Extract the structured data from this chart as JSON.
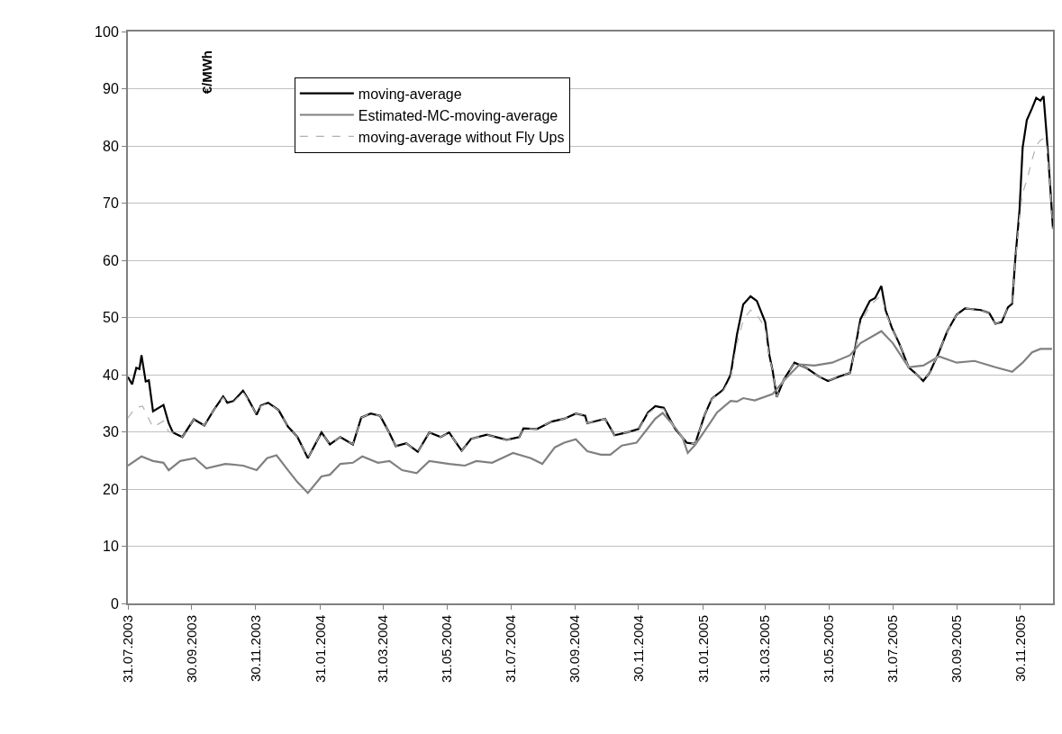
{
  "chart_data": {
    "type": "line",
    "ylabel": "€/MWh",
    "xlim": [
      "2003-07-31",
      "2005-12-31"
    ],
    "ylim": [
      0,
      100
    ],
    "xticks": [
      {
        "value": "2003-07-31",
        "label": "31.07.2003"
      },
      {
        "value": "2003-09-30",
        "label": "30.09.2003"
      },
      {
        "value": "2003-11-30",
        "label": "30.11.2003"
      },
      {
        "value": "2004-01-31",
        "label": "31.01.2004"
      },
      {
        "value": "2004-03-31",
        "label": "31.03.2004"
      },
      {
        "value": "2004-05-31",
        "label": "31.05.2004"
      },
      {
        "value": "2004-07-31",
        "label": "31.07.2004"
      },
      {
        "value": "2004-09-30",
        "label": "30.09.2004"
      },
      {
        "value": "2004-11-30",
        "label": "30.11.2004"
      },
      {
        "value": "2005-01-31",
        "label": "31.01.2005"
      },
      {
        "value": "2005-03-31",
        "label": "31.03.2005"
      },
      {
        "value": "2005-05-31",
        "label": "31.05.2005"
      },
      {
        "value": "2005-07-31",
        "label": "31.07.2005"
      },
      {
        "value": "2005-09-30",
        "label": "30.09.2005"
      },
      {
        "value": "2005-11-30",
        "label": "30.11.2005"
      }
    ],
    "yticks": [
      0,
      10,
      20,
      30,
      40,
      50,
      60,
      70,
      80,
      90,
      100
    ],
    "grid": "y",
    "legend": "top",
    "marker": "none",
    "series": [
      {
        "name": "moving-average",
        "color": "#000000",
        "line_style": "solid",
        "x": [
          "2003-07-31",
          "2003-08-04",
          "2003-08-08",
          "2003-08-11",
          "2003-08-13",
          "2003-08-17",
          "2003-08-20",
          "2003-08-24",
          "2003-09-03",
          "2003-09-08",
          "2003-09-12",
          "2003-09-21",
          "2003-10-02",
          "2003-10-12",
          "2003-10-21",
          "2003-10-30",
          "2003-11-03",
          "2003-11-09",
          "2003-11-18",
          "2003-11-24",
          "2003-12-01",
          "2003-12-05",
          "2003-12-12",
          "2003-12-22",
          "2003-12-31",
          "2004-01-09",
          "2004-01-19",
          "2004-02-01",
          "2004-02-09",
          "2004-02-19",
          "2004-03-02",
          "2004-03-10",
          "2004-03-19",
          "2004-03-28",
          "2004-04-05",
          "2004-04-12",
          "2004-04-22",
          "2004-05-03",
          "2004-05-14",
          "2004-05-25",
          "2004-06-02",
          "2004-06-06",
          "2004-06-14",
          "2004-06-23",
          "2004-07-08",
          "2004-07-27",
          "2004-08-08",
          "2004-08-12",
          "2004-08-25",
          "2004-09-08",
          "2004-09-20",
          "2004-10-01",
          "2004-10-10",
          "2004-10-12",
          "2004-10-29",
          "2004-11-07",
          "2004-11-19",
          "2004-11-30",
          "2004-12-09",
          "2004-12-16",
          "2004-12-24",
          "2005-01-04",
          "2005-01-15",
          "2005-01-23",
          "2005-02-01",
          "2005-02-08",
          "2005-02-19",
          "2005-02-26",
          "2005-03-04",
          "2005-03-10",
          "2005-03-17",
          "2005-03-23",
          "2005-03-31",
          "2005-04-04",
          "2005-04-07",
          "2005-04-11",
          "2005-04-18",
          "2005-04-28",
          "2005-05-10",
          "2005-05-21",
          "2005-05-30",
          "2005-06-10",
          "2005-06-20",
          "2005-06-25",
          "2005-06-30",
          "2005-07-09",
          "2005-07-14",
          "2005-07-20",
          "2005-07-24",
          "2005-07-30",
          "2005-08-06",
          "2005-08-15",
          "2005-08-23",
          "2005-08-29",
          "2005-09-04",
          "2005-09-13",
          "2005-09-21",
          "2005-09-30",
          "2005-10-08",
          "2005-10-23",
          "2005-10-31",
          "2005-11-06",
          "2005-11-12",
          "2005-11-18",
          "2005-11-22",
          "2005-11-25",
          "2005-11-29",
          "2005-12-02",
          "2005-12-06",
          "2005-12-11",
          "2005-12-15",
          "2005-12-19",
          "2005-12-22",
          "2005-12-25",
          "2005-12-28",
          "2005-12-31"
        ],
        "values": [
          39.6,
          38.3,
          41.2,
          41,
          43.4,
          38.8,
          39,
          33.6,
          34.7,
          31.5,
          29.9,
          29.1,
          32.2,
          31.1,
          33.8,
          36.2,
          35.1,
          35.4,
          37.2,
          35.4,
          33,
          34.6,
          35.1,
          33.8,
          30.9,
          29.1,
          25.4,
          29.9,
          27.8,
          29.1,
          27.8,
          32.5,
          33.2,
          32.8,
          30.1,
          27.5,
          28,
          26.5,
          29.9,
          29.1,
          29.9,
          28.8,
          26.7,
          28.8,
          29.5,
          28.6,
          29.1,
          30.6,
          30.5,
          31.8,
          32.3,
          33.2,
          32.8,
          31.5,
          32.3,
          29.4,
          29.9,
          30.5,
          33.4,
          34.5,
          34.2,
          30.5,
          28.1,
          27.9,
          32.9,
          35.8,
          37.4,
          40,
          47,
          52.3,
          53.7,
          52.9,
          49.2,
          43.4,
          40.8,
          36.1,
          39.2,
          42.1,
          41.1,
          39.7,
          38.9,
          39.7,
          40.3,
          44.7,
          49.7,
          52.9,
          53.4,
          55.5,
          51.3,
          48.2,
          45.5,
          41.3,
          40,
          38.9,
          40.3,
          43.9,
          47.6,
          50.5,
          51.6,
          51.3,
          50.8,
          48.9,
          49.2,
          51.8,
          52.4,
          60.3,
          68.7,
          79.7,
          84.5,
          86.6,
          88.4,
          87.9,
          88.7,
          81.8,
          73.9,
          65.5
        ]
      },
      {
        "name": "Estimated-MC-moving-average",
        "color": "#808080",
        "line_style": "solid",
        "x": [
          "2003-07-31",
          "2003-08-13",
          "2003-08-24",
          "2003-09-03",
          "2003-09-08",
          "2003-09-19",
          "2003-10-03",
          "2003-10-14",
          "2003-11-01",
          "2003-11-18",
          "2003-12-01",
          "2003-12-11",
          "2003-12-20",
          "2003-12-31",
          "2004-01-09",
          "2004-01-19",
          "2004-02-01",
          "2004-02-09",
          "2004-02-19",
          "2004-03-02",
          "2004-03-11",
          "2004-03-26",
          "2004-04-06",
          "2004-04-18",
          "2004-05-02",
          "2004-05-14",
          "2004-06-02",
          "2004-06-17",
          "2004-06-28",
          "2004-07-13",
          "2004-08-02",
          "2004-08-19",
          "2004-08-30",
          "2004-09-11",
          "2004-09-20",
          "2004-10-01",
          "2004-10-12",
          "2004-10-25",
          "2004-11-03",
          "2004-11-14",
          "2004-11-28",
          "2004-12-07",
          "2004-12-16",
          "2004-12-23",
          "2005-01-02",
          "2005-01-11",
          "2005-01-16",
          "2005-01-23",
          "2005-02-05",
          "2005-02-13",
          "2005-02-26",
          "2005-03-04",
          "2005-03-10",
          "2005-03-21",
          "2005-04-07",
          "2005-04-19",
          "2005-05-03",
          "2005-05-17",
          "2005-06-03",
          "2005-06-20",
          "2005-06-30",
          "2005-07-20",
          "2005-07-31",
          "2005-08-15",
          "2005-08-29",
          "2005-09-13",
          "2005-09-30",
          "2005-10-17",
          "2005-11-06",
          "2005-11-22",
          "2005-12-02",
          "2005-12-11",
          "2005-12-19",
          "2005-12-30"
        ],
        "values": [
          24.1,
          25.7,
          24.9,
          24.6,
          23.3,
          24.9,
          25.4,
          23.6,
          24.4,
          24.1,
          23.3,
          25.4,
          25.9,
          23.3,
          21.2,
          19.3,
          22.2,
          22.5,
          24.4,
          24.6,
          25.7,
          24.6,
          24.9,
          23.3,
          22.8,
          24.9,
          24.4,
          24.1,
          24.9,
          24.6,
          26.3,
          25.4,
          24.4,
          27.3,
          28.1,
          28.7,
          26.6,
          26,
          26,
          27.6,
          28.1,
          30.2,
          32.3,
          33.3,
          31.2,
          29,
          26.3,
          27.7,
          31.2,
          33.4,
          35.4,
          35.3,
          35.9,
          35.5,
          36.6,
          39.2,
          41.8,
          41.6,
          42.1,
          43.4,
          45.5,
          47.6,
          45.5,
          41.3,
          41.6,
          43.2,
          42.1,
          42.4,
          41.3,
          40.5,
          42.1,
          43.9,
          44.5,
          44.5
        ]
      },
      {
        "name": "moving-average without Fly Ups",
        "color": "#b0b0b0",
        "line_style": "dashed",
        "x": [
          "2003-07-31",
          "2003-08-07",
          "2003-08-14",
          "2003-08-24",
          "2003-09-03",
          "2003-09-08",
          "2003-09-12",
          "2003-09-21",
          "2003-10-02",
          "2003-10-12",
          "2003-10-21",
          "2003-10-30",
          "2003-11-03",
          "2003-11-09",
          "2003-11-18",
          "2003-11-24",
          "2003-12-01",
          "2003-12-05",
          "2003-12-12",
          "2003-12-22",
          "2003-12-31",
          "2004-01-09",
          "2004-01-19",
          "2004-02-01",
          "2004-02-09",
          "2004-02-19",
          "2004-03-02",
          "2004-03-10",
          "2004-03-19",
          "2004-03-28",
          "2004-04-05",
          "2004-04-12",
          "2004-04-22",
          "2004-05-03",
          "2004-05-14",
          "2004-05-25",
          "2004-06-02",
          "2004-06-06",
          "2004-06-14",
          "2004-06-23",
          "2004-07-08",
          "2004-07-27",
          "2004-08-08",
          "2004-08-12",
          "2004-08-25",
          "2004-09-08",
          "2004-09-20",
          "2004-10-01",
          "2004-10-10",
          "2004-10-12",
          "2004-10-29",
          "2004-11-07",
          "2004-11-19",
          "2004-11-30",
          "2004-12-09",
          "2004-12-16",
          "2004-12-24",
          "2005-01-04",
          "2005-01-15",
          "2005-01-23",
          "2005-02-01",
          "2005-02-08",
          "2005-02-19",
          "2005-02-26",
          "2005-03-04",
          "2005-03-10",
          "2005-03-17",
          "2005-03-23",
          "2005-03-31",
          "2005-04-04",
          "2005-04-07",
          "2005-04-11",
          "2005-04-18",
          "2005-04-28",
          "2005-05-10",
          "2005-05-21",
          "2005-05-30",
          "2005-06-10",
          "2005-06-20",
          "2005-06-25",
          "2005-06-30",
          "2005-07-09",
          "2005-07-14",
          "2005-07-20",
          "2005-07-24",
          "2005-07-30",
          "2005-08-06",
          "2005-08-15",
          "2005-08-23",
          "2005-08-29",
          "2005-09-04",
          "2005-09-13",
          "2005-09-21",
          "2005-09-30",
          "2005-10-08",
          "2005-10-23",
          "2005-10-31",
          "2005-11-06",
          "2005-11-12",
          "2005-11-18",
          "2005-11-22",
          "2005-11-25",
          "2005-11-29",
          "2005-12-02",
          "2005-12-06",
          "2005-12-11",
          "2005-12-15",
          "2005-12-19",
          "2005-12-22",
          "2005-12-25",
          "2005-12-28",
          "2005-12-31"
        ],
        "values": [
          32.4,
          34.2,
          34.5,
          30.8,
          31.9,
          30,
          29.9,
          29.1,
          32.2,
          31.1,
          33.8,
          36,
          35,
          35.2,
          37,
          35.3,
          33,
          34.5,
          35,
          33.8,
          30.9,
          29.1,
          25.4,
          29.9,
          27.8,
          29.1,
          27.8,
          32.5,
          33.2,
          32.8,
          30.1,
          27.5,
          28,
          26.5,
          29.9,
          29.1,
          29.9,
          28.8,
          26.7,
          28.8,
          29.5,
          28.6,
          29.1,
          30.6,
          30.5,
          31.8,
          32.3,
          33.2,
          32.8,
          31.5,
          32.3,
          29.4,
          29.9,
          30.5,
          33.2,
          34.2,
          34,
          30.5,
          28.1,
          27.9,
          32.9,
          35.8,
          37.2,
          39.5,
          45.5,
          49.5,
          51.3,
          50.5,
          48.2,
          43,
          40.8,
          36.1,
          39.2,
          42.1,
          41.1,
          39.7,
          38.9,
          39.7,
          40.3,
          44.5,
          49,
          52,
          52.9,
          53.9,
          51,
          48.2,
          45.5,
          41.3,
          40,
          38.9,
          40.3,
          43.9,
          47.6,
          50.5,
          51.6,
          51.3,
          50.8,
          48.9,
          49.2,
          51.8,
          52.4,
          60,
          67.6,
          71.8,
          74,
          77.6,
          80,
          81,
          81.3,
          80,
          73.9,
          65.5
        ]
      }
    ]
  }
}
